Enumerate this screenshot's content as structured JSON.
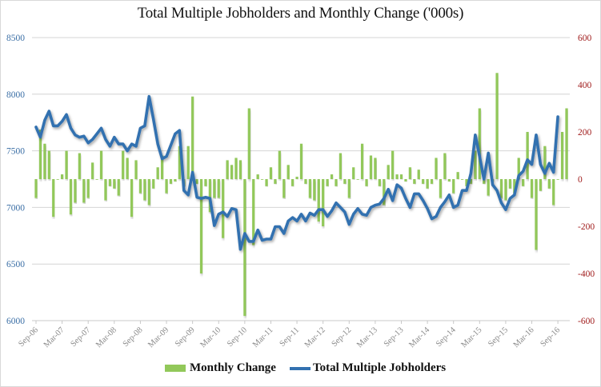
{
  "chart_data": {
    "type": "bar+line",
    "title": "Total Multiple Jobholders and Monthly Change ('000s)",
    "xlabel": "",
    "ylabel_left": "",
    "ylabel_right": "",
    "y_left": {
      "range": [
        6000,
        8500
      ],
      "ticks": [
        "8500",
        "8000",
        "7500",
        "7000",
        "6500",
        "6000"
      ],
      "tick_values": [
        8500,
        8000,
        7500,
        7000,
        6500,
        6000
      ]
    },
    "y_right": {
      "range": [
        -600,
        600
      ],
      "ticks": [
        "600",
        "400",
        "200",
        "0",
        "-200",
        "-400",
        "-600"
      ],
      "tick_values": [
        600,
        400,
        200,
        0,
        -200,
        -400,
        -600
      ]
    },
    "x_tick_labels": [
      "Sep-06",
      "Mar-07",
      "Sep-07",
      "Mar-08",
      "Sep-08",
      "Mar-09",
      "Sep-09",
      "Mar-10",
      "Sep-10",
      "Mar-11",
      "Sep-11",
      "Mar-12",
      "Sep-12",
      "Mar-13",
      "Sep-13",
      "Mar-14",
      "Sep-14",
      "Mar-15",
      "Sep-15",
      "Mar-16",
      "Sep-16"
    ],
    "grid": "horizontal",
    "legend_position": "bottom",
    "colors": {
      "bars": "#92c85a",
      "line": "#3371b0",
      "left_axis": "#3a6ea5",
      "right_axis": "#a01c1c"
    },
    "series": [
      {
        "name": "Monthly Change",
        "type": "bar",
        "axis": "right",
        "values": [
          -80,
          210,
          150,
          120,
          -160,
          0,
          20,
          120,
          -150,
          -100,
          110,
          -100,
          -80,
          70,
          0,
          120,
          -90,
          -30,
          -40,
          -70,
          120,
          90,
          -160,
          80,
          -60,
          -90,
          -110,
          -40,
          50,
          100,
          -60,
          -20,
          -10,
          140,
          -30,
          140,
          350,
          -20,
          -400,
          -30,
          -140,
          -80,
          -80,
          -250,
          80,
          60,
          90,
          80,
          -580,
          300,
          -280,
          20,
          0,
          -30,
          50,
          -20,
          120,
          -80,
          60,
          -30,
          10,
          150,
          -20,
          -80,
          -90,
          -180,
          -200,
          -30,
          20,
          -30,
          110,
          -20,
          -80,
          50,
          0,
          150,
          -30,
          100,
          90,
          -30,
          -110,
          60,
          120,
          20,
          20,
          -10,
          50,
          -20,
          40,
          -20,
          -40,
          -20,
          90,
          -80,
          110,
          -10,
          -60,
          30,
          0,
          -30,
          -20,
          120,
          300,
          -20,
          -70,
          -10,
          450,
          -80,
          -90,
          -40,
          -60,
          90,
          -30,
          200,
          -80,
          -300,
          -50,
          140,
          -40,
          -110,
          0,
          200,
          300
        ],
        "note": "approximate monthly values read from bar heights"
      },
      {
        "name": "Total Multiple Jobholders",
        "type": "line",
        "axis": "left",
        "values": [
          7710,
          7620,
          7770,
          7850,
          7720,
          7720,
          7760,
          7820,
          7700,
          7640,
          7620,
          7630,
          7570,
          7600,
          7650,
          7700,
          7600,
          7540,
          7620,
          7560,
          7560,
          7500,
          7560,
          7540,
          7700,
          7720,
          7980,
          7780,
          7560,
          7430,
          7450,
          7550,
          7650,
          7680,
          7150,
          7110,
          7310,
          7090,
          7080,
          7090,
          7080,
          6840,
          6940,
          6960,
          6920,
          6990,
          6980,
          6630,
          6770,
          6700,
          6700,
          6800,
          6710,
          6720,
          6720,
          6830,
          6830,
          6770,
          6880,
          6910,
          6880,
          6940,
          6880,
          6950,
          6930,
          6980,
          6980,
          6920,
          6970,
          7040,
          7000,
          6960,
          6850,
          6940,
          6990,
          6940,
          6930,
          7000,
          7020,
          7030,
          7080,
          7160,
          7060,
          7200,
          7170,
          7080,
          7000,
          7120,
          7120,
          7060,
          6990,
          6900,
          6920,
          7000,
          7050,
          7110,
          7000,
          7020,
          7150,
          7150,
          7300,
          7640,
          7450,
          7250,
          7480,
          7200,
          7150,
          7040,
          6980,
          7080,
          7110,
          7280,
          7320,
          7420,
          7380,
          7640,
          7380,
          7300,
          7390,
          7310,
          7800
        ],
        "note": "approximate levels read from line position"
      }
    ]
  },
  "legend": {
    "items": [
      {
        "label": "Monthly Change",
        "kind": "bar"
      },
      {
        "label": "Total Multiple Jobholders",
        "kind": "line"
      }
    ]
  }
}
